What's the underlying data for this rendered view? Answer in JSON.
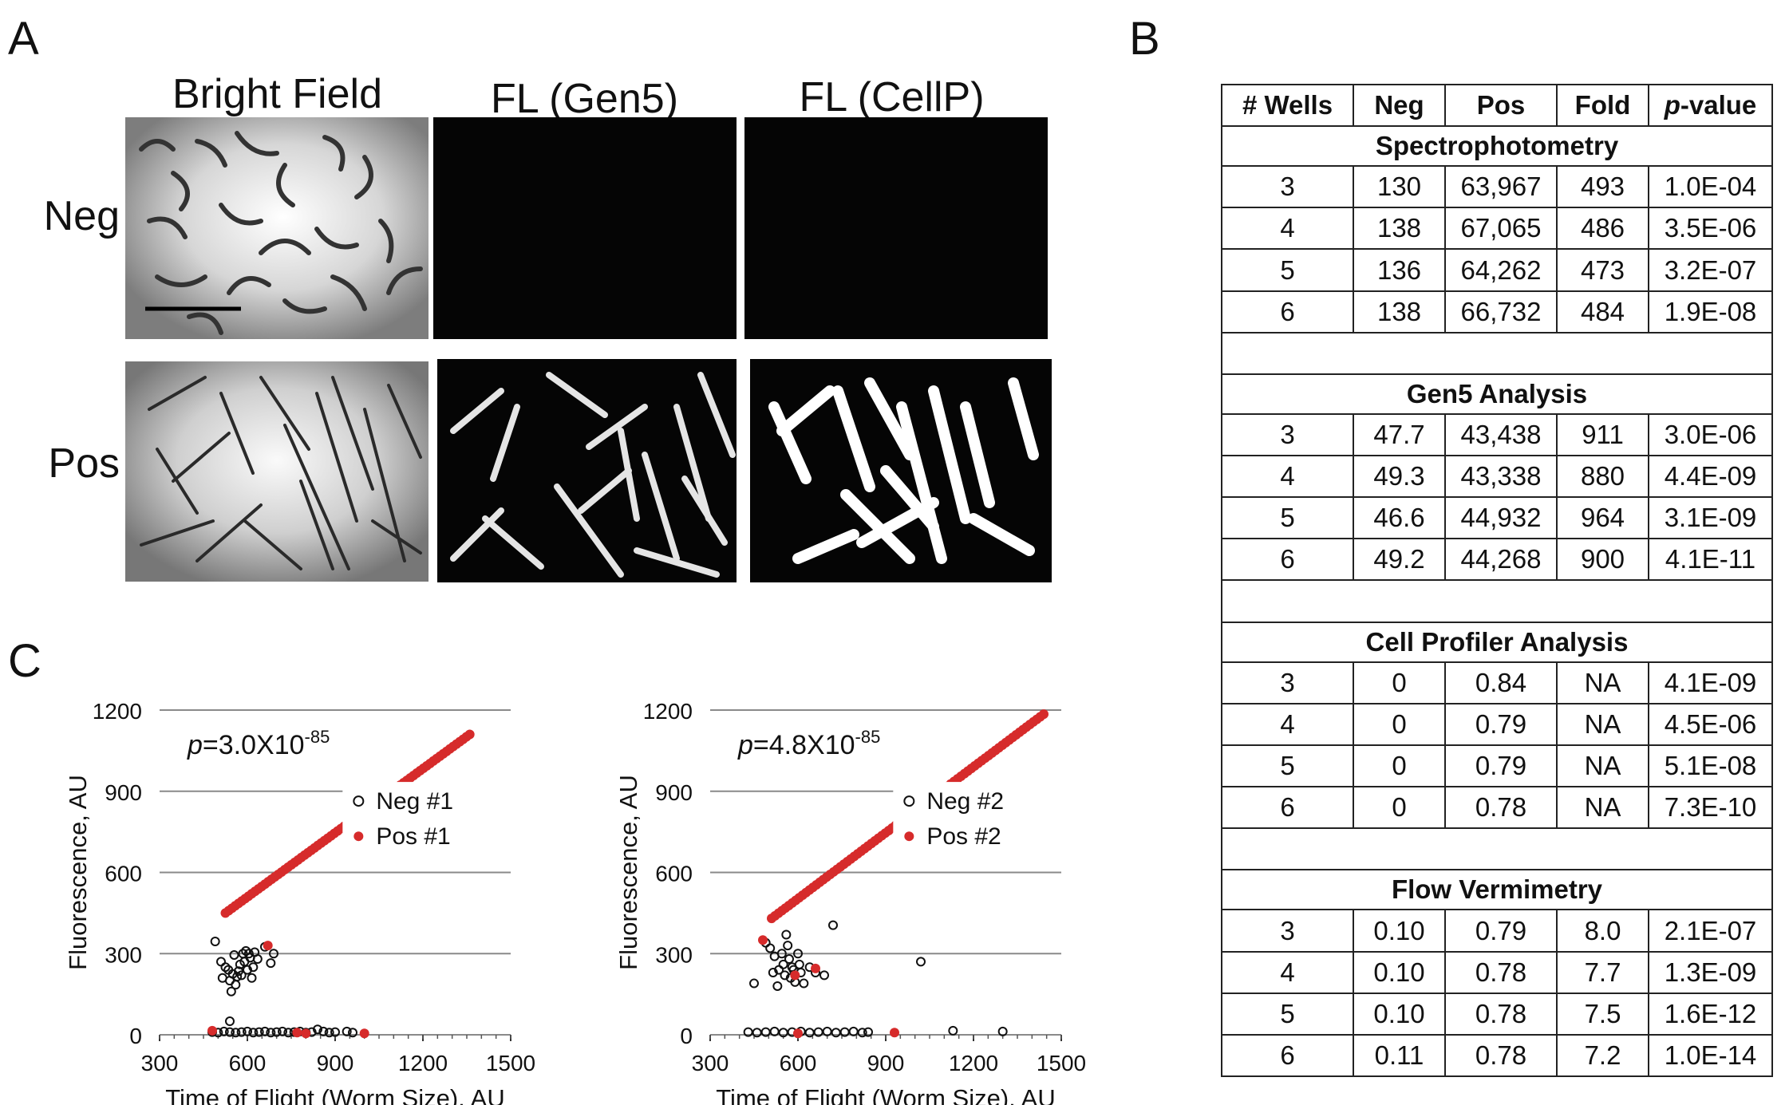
{
  "panel_a": {
    "letter": "A",
    "columns": [
      "Bright Field",
      "FL (Gen5)",
      "FL (CellP)"
    ],
    "rows": [
      "Neg",
      "Pos"
    ]
  },
  "panel_b": {
    "letter": "B",
    "headers": [
      "# Wells",
      "Neg",
      "Pos",
      "Fold",
      "p",
      "-value"
    ],
    "sections": [
      {
        "title": "Spectrophotometry",
        "rows": [
          [
            "3",
            "130",
            "63,967",
            "493",
            "1.0E-04"
          ],
          [
            "4",
            "138",
            "67,065",
            "486",
            "3.5E-06"
          ],
          [
            "5",
            "136",
            "64,262",
            "473",
            "3.2E-07"
          ],
          [
            "6",
            "138",
            "66,732",
            "484",
            "1.9E-08"
          ]
        ]
      },
      {
        "title": "Gen5 Analysis",
        "rows": [
          [
            "3",
            "47.7",
            "43,438",
            "911",
            "3.0E-06"
          ],
          [
            "4",
            "49.3",
            "43,338",
            "880",
            "4.4E-09"
          ],
          [
            "5",
            "46.6",
            "44,932",
            "964",
            "3.1E-09"
          ],
          [
            "6",
            "49.2",
            "44,268",
            "900",
            "4.1E-11"
          ]
        ]
      },
      {
        "title": "Cell Profiler Analysis",
        "rows": [
          [
            "3",
            "0",
            "0.84",
            "NA",
            "4.1E-09"
          ],
          [
            "4",
            "0",
            "0.79",
            "NA",
            "4.5E-06"
          ],
          [
            "5",
            "0",
            "0.79",
            "NA",
            "5.1E-08"
          ],
          [
            "6",
            "0",
            "0.78",
            "NA",
            "7.3E-10"
          ]
        ]
      },
      {
        "title": "Flow Vermimetry",
        "rows": [
          [
            "3",
            "0.10",
            "0.79",
            "8.0",
            "2.1E-07"
          ],
          [
            "4",
            "0.10",
            "0.78",
            "7.7",
            "1.3E-09"
          ],
          [
            "5",
            "0.10",
            "0.78",
            "7.5",
            "1.6E-12"
          ],
          [
            "6",
            "0.11",
            "0.78",
            "7.2",
            "1.0E-14"
          ]
        ]
      }
    ]
  },
  "panel_c": {
    "letter": "C"
  },
  "chart_data": [
    {
      "type": "scatter",
      "xlabel": "Time of Flight (Worm Size), AU",
      "ylabel": "Fluorescence, AU",
      "xlim": [
        300,
        1500
      ],
      "ylim": [
        0,
        1200
      ],
      "xticks": [
        "300",
        "600",
        "900",
        "1200",
        "1500"
      ],
      "yticks": [
        "0",
        "300",
        "600",
        "900",
        "1200"
      ],
      "annotation": {
        "p": "p",
        "main": "=3.0X10",
        "exp": "-85"
      },
      "colors": {
        "neg": "#111111",
        "pos": "#d62b2b"
      },
      "series": [
        {
          "name": "Neg #1",
          "marker": "open-circle",
          "points": [
            [
              490,
              345
            ],
            [
              510,
              270
            ],
            [
              515,
              210
            ],
            [
              525,
              250
            ],
            [
              535,
              240
            ],
            [
              540,
              200
            ],
            [
              545,
              160
            ],
            [
              550,
              225
            ],
            [
              555,
              295
            ],
            [
              560,
              185
            ],
            [
              565,
              215
            ],
            [
              570,
              235
            ],
            [
              575,
              260
            ],
            [
              580,
              220
            ],
            [
              585,
              300
            ],
            [
              590,
              270
            ],
            [
              595,
              310
            ],
            [
              600,
              240
            ],
            [
              605,
              300
            ],
            [
              610,
              285
            ],
            [
              615,
              210
            ],
            [
              620,
              250
            ],
            [
              625,
              305
            ],
            [
              635,
              280
            ],
            [
              660,
              325
            ],
            [
              680,
              265
            ],
            [
              690,
              300
            ],
            [
              540,
              50
            ],
            [
              480,
              10
            ],
            [
              500,
              8
            ],
            [
              520,
              12
            ],
            [
              540,
              10
            ],
            [
              560,
              8
            ],
            [
              580,
              10
            ],
            [
              600,
              12
            ],
            [
              620,
              8
            ],
            [
              640,
              10
            ],
            [
              660,
              12
            ],
            [
              680,
              8
            ],
            [
              700,
              10
            ],
            [
              720,
              12
            ],
            [
              740,
              8
            ],
            [
              760,
              10
            ],
            [
              780,
              12
            ],
            [
              800,
              8
            ],
            [
              820,
              10
            ],
            [
              840,
              20
            ],
            [
              860,
              12
            ],
            [
              880,
              8
            ],
            [
              900,
              10
            ],
            [
              940,
              12
            ],
            [
              960,
              8
            ]
          ]
        },
        {
          "name": "Pos #1",
          "marker": "filled-circle",
          "line": {
            "from": [
              525,
              450
            ],
            "to": [
              1360,
              1110
            ],
            "count": 75
          },
          "points": [
            [
              670,
              330
            ],
            [
              480,
              15
            ],
            [
              770,
              8
            ],
            [
              800,
              5
            ],
            [
              1000,
              5
            ]
          ]
        }
      ],
      "legend": [
        "Neg #1",
        "Pos #1"
      ]
    },
    {
      "type": "scatter",
      "xlabel": "Time of Flight (Worm Size), AU",
      "ylabel": "Fluorescence, AU",
      "xlim": [
        300,
        1500
      ],
      "ylim": [
        0,
        1200
      ],
      "xticks": [
        "300",
        "600",
        "900",
        "1200",
        "1500"
      ],
      "yticks": [
        "0",
        "300",
        "600",
        "900",
        "1200"
      ],
      "annotation": {
        "p": "p",
        "main": "=4.8X10",
        "exp": "-85"
      },
      "colors": {
        "neg": "#111111",
        "pos": "#d62b2b"
      },
      "series": [
        {
          "name": "Neg #2",
          "marker": "open-circle",
          "points": [
            [
              450,
              190
            ],
            [
              490,
              340
            ],
            [
              505,
              320
            ],
            [
              515,
              230
            ],
            [
              520,
              290
            ],
            [
              530,
              180
            ],
            [
              535,
              240
            ],
            [
              545,
              300
            ],
            [
              550,
              260
            ],
            [
              555,
              220
            ],
            [
              560,
              370
            ],
            [
              565,
              330
            ],
            [
              570,
              280
            ],
            [
              575,
              210
            ],
            [
              580,
              250
            ],
            [
              585,
              240
            ],
            [
              590,
              195
            ],
            [
              600,
              300
            ],
            [
              605,
              260
            ],
            [
              610,
              230
            ],
            [
              620,
              190
            ],
            [
              640,
              250
            ],
            [
              660,
              230
            ],
            [
              690,
              220
            ],
            [
              720,
              405
            ],
            [
              1020,
              270
            ],
            [
              430,
              10
            ],
            [
              460,
              8
            ],
            [
              490,
              10
            ],
            [
              520,
              12
            ],
            [
              550,
              8
            ],
            [
              580,
              10
            ],
            [
              610,
              12
            ],
            [
              640,
              8
            ],
            [
              670,
              10
            ],
            [
              700,
              12
            ],
            [
              730,
              8
            ],
            [
              760,
              10
            ],
            [
              790,
              12
            ],
            [
              820,
              8
            ],
            [
              840,
              10
            ],
            [
              1130,
              15
            ],
            [
              1300,
              12
            ]
          ]
        },
        {
          "name": "Pos #2",
          "marker": "filled-circle",
          "line": {
            "from": [
              510,
              430
            ],
            "to": [
              1440,
              1185
            ],
            "count": 80
          },
          "points": [
            [
              480,
              350
            ],
            [
              590,
              220
            ],
            [
              660,
              245
            ],
            [
              600,
              5
            ],
            [
              930,
              8
            ]
          ]
        }
      ],
      "legend": [
        "Neg #2",
        "Pos #2"
      ]
    }
  ]
}
